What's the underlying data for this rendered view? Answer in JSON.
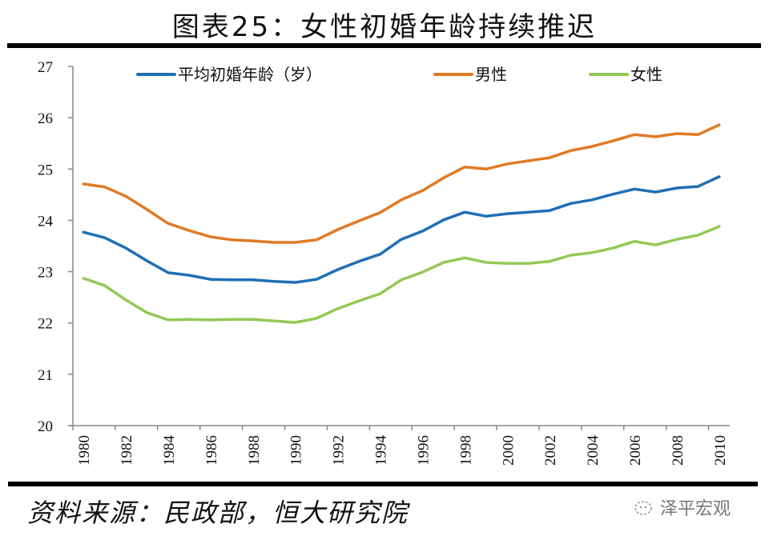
{
  "title": "图表25：女性初婚年龄持续推迟",
  "source": "资料来源：民政部，恒大研究院",
  "watermark": {
    "text": "泽平宏观",
    "icon": "wechat-icon"
  },
  "colors": {
    "avg": "#1F6FB5",
    "male": "#E07A25",
    "female": "#92C955",
    "axis": "#888888",
    "bars": "#000000"
  },
  "chart_data": {
    "type": "line",
    "title": "图表25：女性初婚年龄持续推迟",
    "xlabel": "",
    "ylabel": "",
    "ylim": [
      20,
      27
    ],
    "yticks": [
      "20",
      "21",
      "22",
      "23",
      "24",
      "25",
      "26",
      "27"
    ],
    "grid": false,
    "legend_position": "top",
    "x": [
      1980,
      1981,
      1982,
      1983,
      1984,
      1985,
      1986,
      1987,
      1988,
      1989,
      1990,
      1991,
      1992,
      1993,
      1994,
      1995,
      1996,
      1997,
      1998,
      1999,
      2000,
      2001,
      2002,
      2003,
      2004,
      2005,
      2006,
      2007,
      2008,
      2009,
      2010
    ],
    "xtick_labels": [
      "1980",
      "1982",
      "1984",
      "1986",
      "1988",
      "1990",
      "1992",
      "1994",
      "1996",
      "1998",
      "2000",
      "2002",
      "2004",
      "2006",
      "2008",
      "2010"
    ],
    "series": [
      {
        "name": "平均初婚年龄（岁）",
        "color": "#1F6FB5",
        "values": [
          23.77,
          23.66,
          23.46,
          23.21,
          22.98,
          22.93,
          22.85,
          22.84,
          22.84,
          22.81,
          22.79,
          22.85,
          23.04,
          23.2,
          23.34,
          23.63,
          23.79,
          24.01,
          24.16,
          24.08,
          24.13,
          24.16,
          24.19,
          24.33,
          24.4,
          24.51,
          24.61,
          24.55,
          24.63,
          24.66,
          24.85
        ]
      },
      {
        "name": "男性",
        "color": "#E07A25",
        "values": [
          24.71,
          24.65,
          24.47,
          24.21,
          23.94,
          23.8,
          23.68,
          23.62,
          23.6,
          23.57,
          23.57,
          23.62,
          23.82,
          23.99,
          24.15,
          24.4,
          24.58,
          24.83,
          25.04,
          25.0,
          25.1,
          25.16,
          25.22,
          25.36,
          25.44,
          25.55,
          25.67,
          25.63,
          25.69,
          25.67,
          25.86
        ]
      },
      {
        "name": "女性",
        "color": "#92C955",
        "values": [
          22.87,
          22.73,
          22.45,
          22.2,
          22.06,
          22.07,
          22.06,
          22.07,
          22.07,
          22.04,
          22.01,
          22.09,
          22.28,
          22.43,
          22.57,
          22.84,
          22.99,
          23.18,
          23.27,
          23.18,
          23.16,
          23.16,
          23.2,
          23.32,
          23.37,
          23.46,
          23.59,
          23.52,
          23.63,
          23.71,
          23.88
        ]
      }
    ]
  }
}
